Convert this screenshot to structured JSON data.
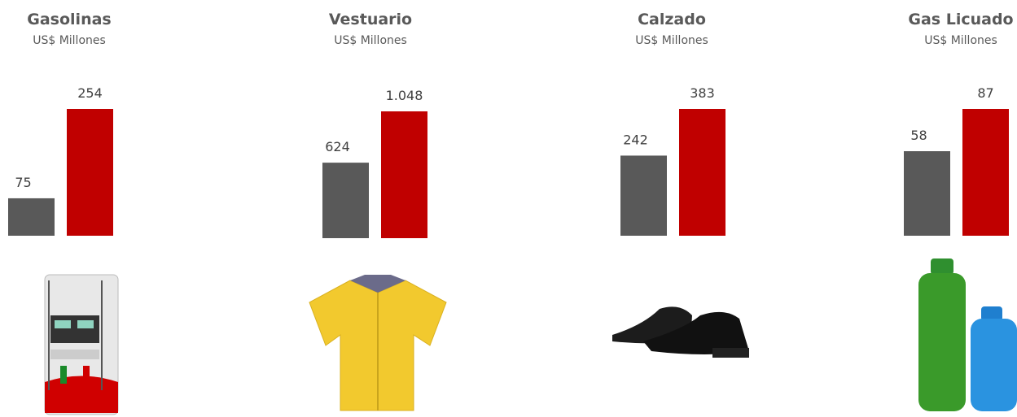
{
  "chart_data": [
    {
      "type": "bar",
      "title": "Gasolinas",
      "subtitle": "US$ Millones",
      "values": [
        75,
        254
      ],
      "colors": [
        "#595959",
        "#c00000"
      ]
    },
    {
      "type": "bar",
      "title": "Vestuario",
      "subtitle": "US$ Millones",
      "values": [
        624,
        1048
      ],
      "value_labels": [
        "624",
        "1.048"
      ],
      "colors": [
        "#595959",
        "#c00000"
      ]
    },
    {
      "type": "bar",
      "title": "Calzado",
      "subtitle": "US$ Millones",
      "values": [
        242,
        383
      ],
      "colors": [
        "#595959",
        "#c00000"
      ]
    },
    {
      "type": "bar",
      "title": "Gas Licuado",
      "subtitle": "US$ Millones",
      "values": [
        58,
        87
      ],
      "colors": [
        "#595959",
        "#c00000"
      ]
    }
  ]
}
